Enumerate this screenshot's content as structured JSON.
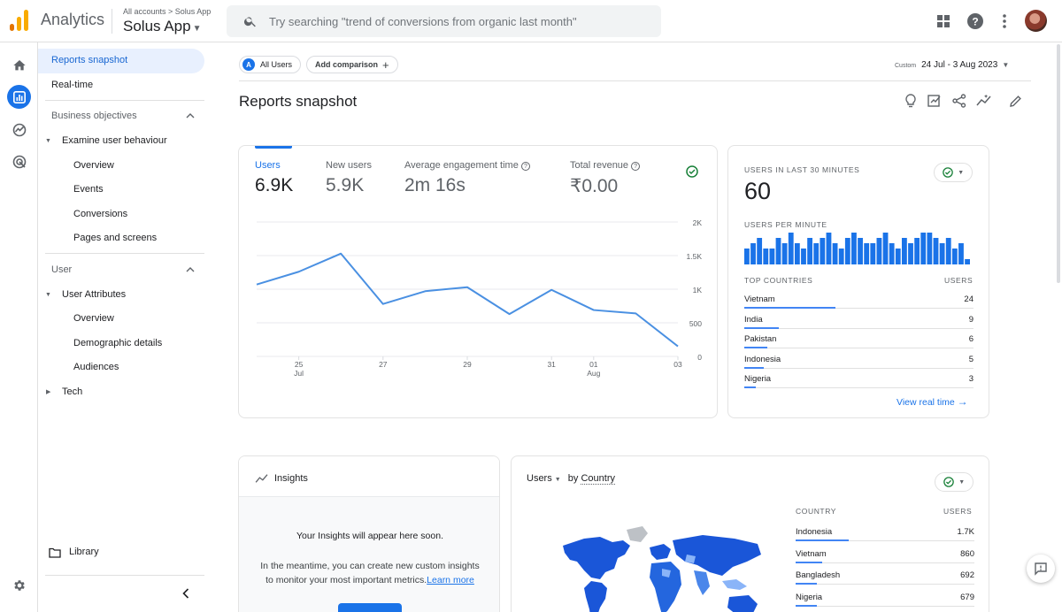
{
  "header": {
    "app_name": "Analytics",
    "breadcrumb": "All accounts > Solus App",
    "property": "Solus App",
    "search_placeholder": "Try searching \"trend of conversions from organic last month\""
  },
  "nav": {
    "reports_snapshot": "Reports snapshot",
    "realtime": "Real-time",
    "business_objectives": "Business objectives",
    "examine_user_behaviour": "Examine user behaviour",
    "biz_children": [
      "Overview",
      "Events",
      "Conversions",
      "Pages and screens"
    ],
    "user": "User",
    "user_attributes": "User Attributes",
    "user_children": [
      "Overview",
      "Demographic details",
      "Audiences"
    ],
    "tech": "Tech",
    "library": "Library"
  },
  "toolbar": {
    "all_users": "All Users",
    "all_users_badge": "A",
    "add_comparison": "Add comparison",
    "date_label": "Custom",
    "date_range": "24 Jul - 3 Aug 2023"
  },
  "page": {
    "title": "Reports snapshot"
  },
  "metrics": [
    {
      "label": "Users",
      "value": "6.9K"
    },
    {
      "label": "New users",
      "value": "5.9K"
    },
    {
      "label": "Average engagement time",
      "value": "2m 16s"
    },
    {
      "label": "Total revenue",
      "value": "₹0.00"
    }
  ],
  "chart_data": {
    "type": "line",
    "x": [
      "24 Jul",
      "25 Jul",
      "26 Jul",
      "27 Jul",
      "28 Jul",
      "29 Jul",
      "30 Jul",
      "31 Jul",
      "01 Aug",
      "02 Aug",
      "03 Aug"
    ],
    "series": [
      {
        "name": "Users",
        "values": [
          1070,
          1260,
          1530,
          780,
          970,
          1030,
          630,
          990,
          690,
          640,
          150
        ]
      }
    ],
    "ylim": [
      0,
      2000
    ],
    "yticks": [
      "2K",
      "1.5K",
      "1K",
      "500",
      "0"
    ],
    "xticks": [
      {
        "day": "25",
        "month": "Jul"
      },
      {
        "day": "27",
        "month": ""
      },
      {
        "day": "29",
        "month": ""
      },
      {
        "day": "31",
        "month": ""
      },
      {
        "day": "01",
        "month": "Aug"
      },
      {
        "day": "03",
        "month": ""
      }
    ],
    "color": "#4a90e2"
  },
  "realtime": {
    "title": "USERS IN LAST 30 MINUTES",
    "value": "60",
    "per_minute_label": "USERS PER MINUTE",
    "per_minute": [
      3,
      4,
      5,
      3,
      3,
      5,
      4,
      6,
      4,
      3,
      5,
      4,
      5,
      6,
      4,
      3,
      5,
      6,
      5,
      4,
      4,
      5,
      6,
      4,
      3,
      5,
      4,
      5,
      6,
      6,
      5,
      4,
      5,
      3,
      4,
      1
    ],
    "countries_label": "TOP COUNTRIES",
    "users_label": "USERS",
    "countries": [
      {
        "name": "Vietnam",
        "users": "24",
        "share": 1.0
      },
      {
        "name": "India",
        "users": "9",
        "share": 0.375
      },
      {
        "name": "Pakistan",
        "users": "6",
        "share": 0.25
      },
      {
        "name": "Indonesia",
        "users": "5",
        "share": 0.21
      },
      {
        "name": "Nigeria",
        "users": "3",
        "share": 0.125
      }
    ],
    "view_link": "View real time"
  },
  "insights": {
    "title": "Insights",
    "heading": "Your Insights will appear here soon.",
    "body_line1": "In the meantime, you can create new custom insights",
    "body_line2": "to monitor your most important metrics.",
    "learn_more": "Learn more"
  },
  "country_card": {
    "metric": "Users",
    "by_label": "by",
    "dimension": "Country",
    "col_country": "COUNTRY",
    "col_users": "USERS",
    "rows": [
      {
        "name": "Indonesia",
        "users": "1.7K",
        "share": 1.0
      },
      {
        "name": "Vietnam",
        "users": "860",
        "share": 0.5
      },
      {
        "name": "Bangladesh",
        "users": "692",
        "share": 0.4
      },
      {
        "name": "Nigeria",
        "users": "679",
        "share": 0.4
      }
    ]
  },
  "colors": {
    "accent": "#1a73e8",
    "success": "#188038",
    "map_dark": "#1a56d8",
    "map_light": "#8ab4f8"
  }
}
